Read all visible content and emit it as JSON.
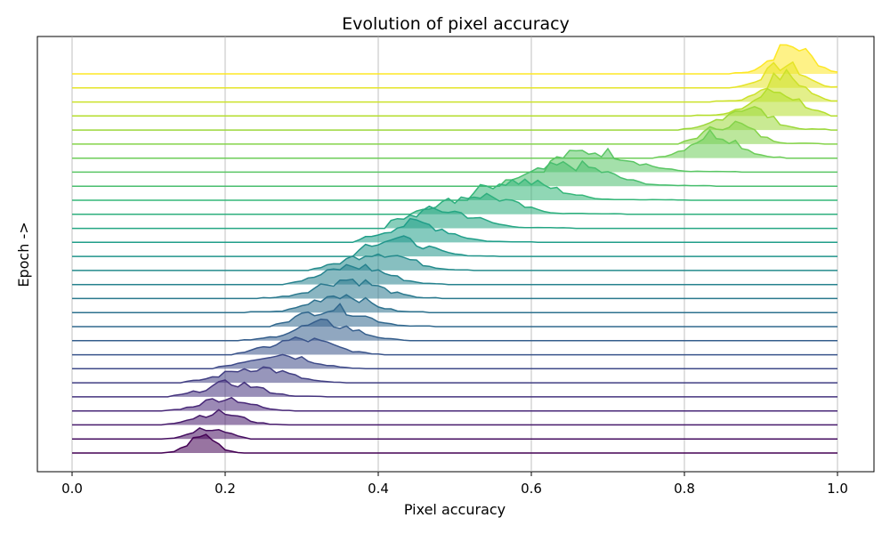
{
  "chart_data": {
    "type": "area",
    "subtype": "ridgeline",
    "title": "Evolution of pixel accuracy",
    "xlabel": "Pixel accuracy",
    "ylabel": "Epoch ->",
    "xlim": [
      0.0,
      1.0
    ],
    "xticks": [
      "0.0",
      "0.2",
      "0.4",
      "0.6",
      "0.8",
      "1.0"
    ],
    "vertical_grid": true,
    "colormap": "viridis",
    "fill_opacity": 0.55,
    "epochs": 28,
    "distributions": [
      {
        "mode": 0.17,
        "width": 0.018,
        "range": [
          0.125,
          0.22
        ],
        "peak": 0.4
      },
      {
        "mode": 0.18,
        "width": 0.022,
        "range": [
          0.12,
          0.23
        ],
        "peak": 0.28
      },
      {
        "mode": 0.19,
        "width": 0.03,
        "range": [
          0.12,
          0.28
        ],
        "peak": 0.32
      },
      {
        "mode": 0.2,
        "width": 0.03,
        "range": [
          0.12,
          0.29
        ],
        "peak": 0.34
      },
      {
        "mode": 0.21,
        "width": 0.035,
        "range": [
          0.13,
          0.33
        ],
        "peak": 0.36
      },
      {
        "mode": 0.24,
        "width": 0.04,
        "range": [
          0.15,
          0.35
        ],
        "peak": 0.4
      },
      {
        "mode": 0.27,
        "width": 0.04,
        "range": [
          0.19,
          0.38
        ],
        "peak": 0.38
      },
      {
        "mode": 0.3,
        "width": 0.04,
        "range": [
          0.21,
          0.4
        ],
        "peak": 0.4
      },
      {
        "mode": 0.33,
        "width": 0.04,
        "range": [
          0.22,
          0.44
        ],
        "peak": 0.45
      },
      {
        "mode": 0.34,
        "width": 0.04,
        "range": [
          0.26,
          0.47
        ],
        "peak": 0.48
      },
      {
        "mode": 0.35,
        "width": 0.035,
        "range": [
          0.23,
          0.46
        ],
        "peak": 0.48
      },
      {
        "mode": 0.36,
        "width": 0.04,
        "range": [
          0.25,
          0.48
        ],
        "peak": 0.5
      },
      {
        "mode": 0.37,
        "width": 0.04,
        "range": [
          0.28,
          0.49
        ],
        "peak": 0.48
      },
      {
        "mode": 0.4,
        "width": 0.04,
        "range": [
          0.31,
          0.52
        ],
        "peak": 0.48
      },
      {
        "mode": 0.42,
        "width": 0.04,
        "range": [
          0.37,
          0.55
        ],
        "peak": 0.45
      },
      {
        "mode": 0.45,
        "width": 0.04,
        "range": [
          0.37,
          0.6
        ],
        "peak": 0.5
      },
      {
        "mode": 0.48,
        "width": 0.045,
        "range": [
          0.41,
          0.65
        ],
        "peak": 0.48
      },
      {
        "mode": 0.53,
        "width": 0.045,
        "range": [
          0.45,
          0.72
        ],
        "peak": 0.5
      },
      {
        "mode": 0.58,
        "width": 0.05,
        "range": [
          0.52,
          0.8
        ],
        "peak": 0.5
      },
      {
        "mode": 0.65,
        "width": 0.05,
        "range": [
          0.56,
          0.84
        ],
        "peak": 0.55
      },
      {
        "mode": 0.68,
        "width": 0.05,
        "range": [
          0.62,
          0.87
        ],
        "peak": 0.55
      },
      {
        "mode": 0.84,
        "width": 0.03,
        "range": [
          0.76,
          0.93
        ],
        "peak": 0.65
      },
      {
        "mode": 0.86,
        "width": 0.03,
        "range": [
          0.8,
          0.98
        ],
        "peak": 0.55
      },
      {
        "mode": 0.88,
        "width": 0.03,
        "range": [
          0.8,
          0.99
        ],
        "peak": 0.6
      },
      {
        "mode": 0.92,
        "width": 0.03,
        "range": [
          0.81,
          0.99
        ],
        "peak": 0.65
      },
      {
        "mode": 0.93,
        "width": 0.025,
        "range": [
          0.84,
          1.0
        ],
        "peak": 0.7
      },
      {
        "mode": 0.93,
        "width": 0.025,
        "range": [
          0.86,
          1.0
        ],
        "peak": 0.6
      },
      {
        "mode": 0.94,
        "width": 0.025,
        "range": [
          0.86,
          1.0
        ],
        "peak": 0.75
      }
    ]
  }
}
